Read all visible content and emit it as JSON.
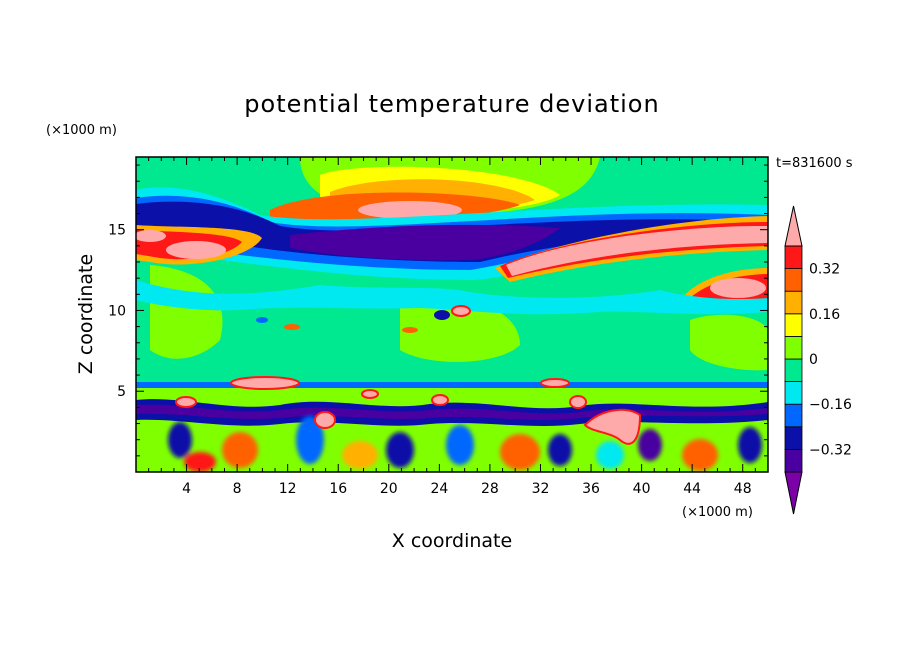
{
  "chart_data": {
    "type": "heatmap",
    "title": "potential temperature deviation",
    "xlabel": "X coordinate",
    "ylabel": "Z coordinate",
    "x_unit": "(×1000 m)",
    "y_unit": "(×1000 m)",
    "time_label": "t=831600 s",
    "xlim": [
      0,
      50
    ],
    "ylim": [
      0,
      19.5
    ],
    "x_ticks": [
      4,
      8,
      12,
      16,
      20,
      24,
      28,
      32,
      36,
      40,
      44,
      48
    ],
    "y_ticks": [
      5,
      10,
      15
    ],
    "colorbar": {
      "levels": [
        -0.4,
        -0.32,
        -0.24,
        -0.16,
        -0.08,
        0,
        0.08,
        0.16,
        0.24,
        0.32,
        0.4
      ],
      "labels": [
        "0.32",
        "0.16",
        "0",
        "−0.16",
        "−0.32"
      ],
      "label_values": [
        0.32,
        0.16,
        0,
        -0.16,
        -0.32
      ],
      "colors": [
        "#7b00a8",
        "#4a00a0",
        "#0a10a8",
        "#0068ff",
        "#00e8f0",
        "#00e890",
        "#80ff00",
        "#ffff00",
        "#ffb000",
        "#ff6000",
        "#ff1818",
        "#ffaaaa"
      ]
    },
    "features": [
      {
        "x": 12,
        "z": 16.4,
        "value": 0.24
      },
      {
        "x": 20,
        "z": 16.6,
        "value": 0.45
      },
      {
        "x": 24,
        "z": 14.6,
        "value": -0.4
      },
      {
        "x": 40,
        "z": 14.2,
        "value": 0.45
      },
      {
        "x": 45,
        "z": 12.0,
        "value": 0.4
      },
      {
        "x": 4,
        "z": 14.4,
        "value": 0.35
      },
      {
        "x": 18,
        "z": 4.8,
        "value": 0.35
      },
      {
        "x": 38,
        "z": 3.3,
        "value": 0.35
      }
    ]
  }
}
